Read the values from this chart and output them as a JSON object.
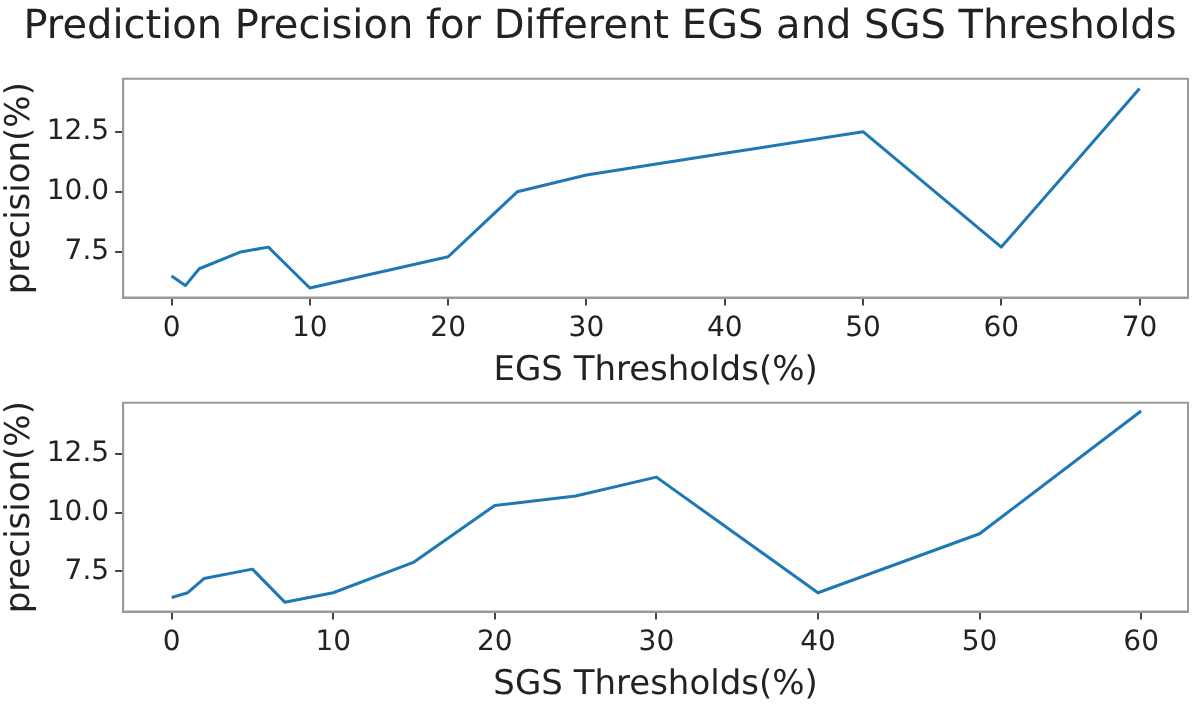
{
  "chart_data": [
    {
      "type": "line",
      "title": "Prediction Precision for Different EGS and SGS Thresholds",
      "xlabel": "EGS Thresholds(%)",
      "ylabel": "precision(%)",
      "x": [
        0,
        1,
        2,
        5,
        7,
        10,
        20,
        25,
        30,
        40,
        50,
        60,
        70
      ],
      "series": [
        {
          "color": "#1f77b4",
          "values": [
            6.5,
            6.1,
            6.8,
            7.5,
            7.7,
            6.0,
            7.3,
            10.0,
            10.7,
            11.6,
            12.5,
            7.7,
            14.3
          ]
        }
      ],
      "xlim": [
        -3.5,
        73.5
      ],
      "xticks": [
        0,
        10,
        20,
        30,
        40,
        50,
        60,
        70
      ],
      "ylim": [
        5.6,
        14.7
      ],
      "yticks": [
        {
          "value": 7.5,
          "label": "7.5"
        },
        {
          "value": 10,
          "label": "10.0"
        },
        {
          "value": 12.5,
          "label": "12.5"
        }
      ],
      "grid": false,
      "legend": false,
      "marker": "none",
      "line_style": "solid"
    },
    {
      "type": "line",
      "xlabel": "SGS Thresholds(%)",
      "ylabel": "precision(%)",
      "x": [
        0,
        1,
        2,
        5,
        7,
        10,
        15,
        20,
        25,
        30,
        40,
        50,
        60
      ],
      "series": [
        {
          "color": "#1f77b4",
          "values": [
            6.4,
            6.6,
            7.2,
            7.6,
            6.2,
            6.6,
            7.9,
            10.3,
            10.7,
            11.5,
            6.6,
            9.1,
            14.3
          ]
        }
      ],
      "xlim": [
        -3,
        62.9
      ],
      "xticks": [
        0,
        10,
        20,
        30,
        40,
        50,
        60
      ],
      "ylim": [
        5.8,
        14.65
      ],
      "yticks": [
        {
          "value": 7.5,
          "label": "7.5"
        },
        {
          "value": 10,
          "label": "10.0"
        },
        {
          "value": 12.5,
          "label": "12.5"
        }
      ],
      "grid": false,
      "legend": false,
      "marker": "none",
      "line_style": "solid"
    }
  ]
}
